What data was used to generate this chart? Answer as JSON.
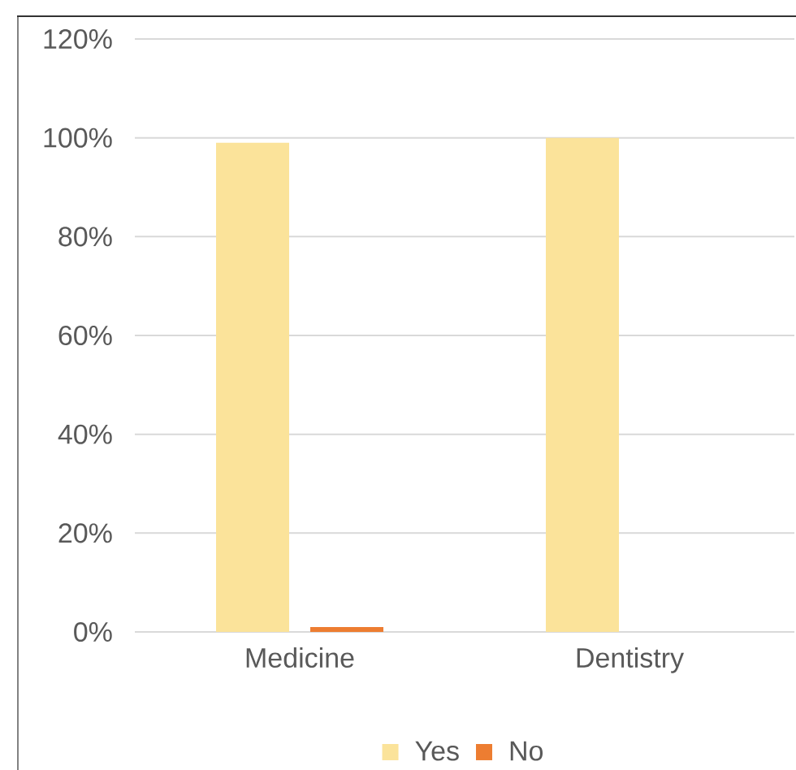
{
  "chart_data": {
    "type": "bar",
    "categories": [
      "Medicine",
      "Dentistry"
    ],
    "series": [
      {
        "name": "Yes",
        "color": "#fbe39a",
        "values": [
          99,
          100
        ]
      },
      {
        "name": "No",
        "color": "#ed7d31",
        "values": [
          1,
          0
        ]
      }
    ],
    "ylim": [
      0,
      120
    ],
    "yticks": [
      {
        "value": 0,
        "label": "0%"
      },
      {
        "value": 20,
        "label": "20%"
      },
      {
        "value": 40,
        "label": "40%"
      },
      {
        "value": 60,
        "label": "60%"
      },
      {
        "value": 80,
        "label": "80%"
      },
      {
        "value": 100,
        "label": "100%"
      },
      {
        "value": 120,
        "label": "120%"
      }
    ],
    "grid": "y",
    "legend": "bottom"
  }
}
